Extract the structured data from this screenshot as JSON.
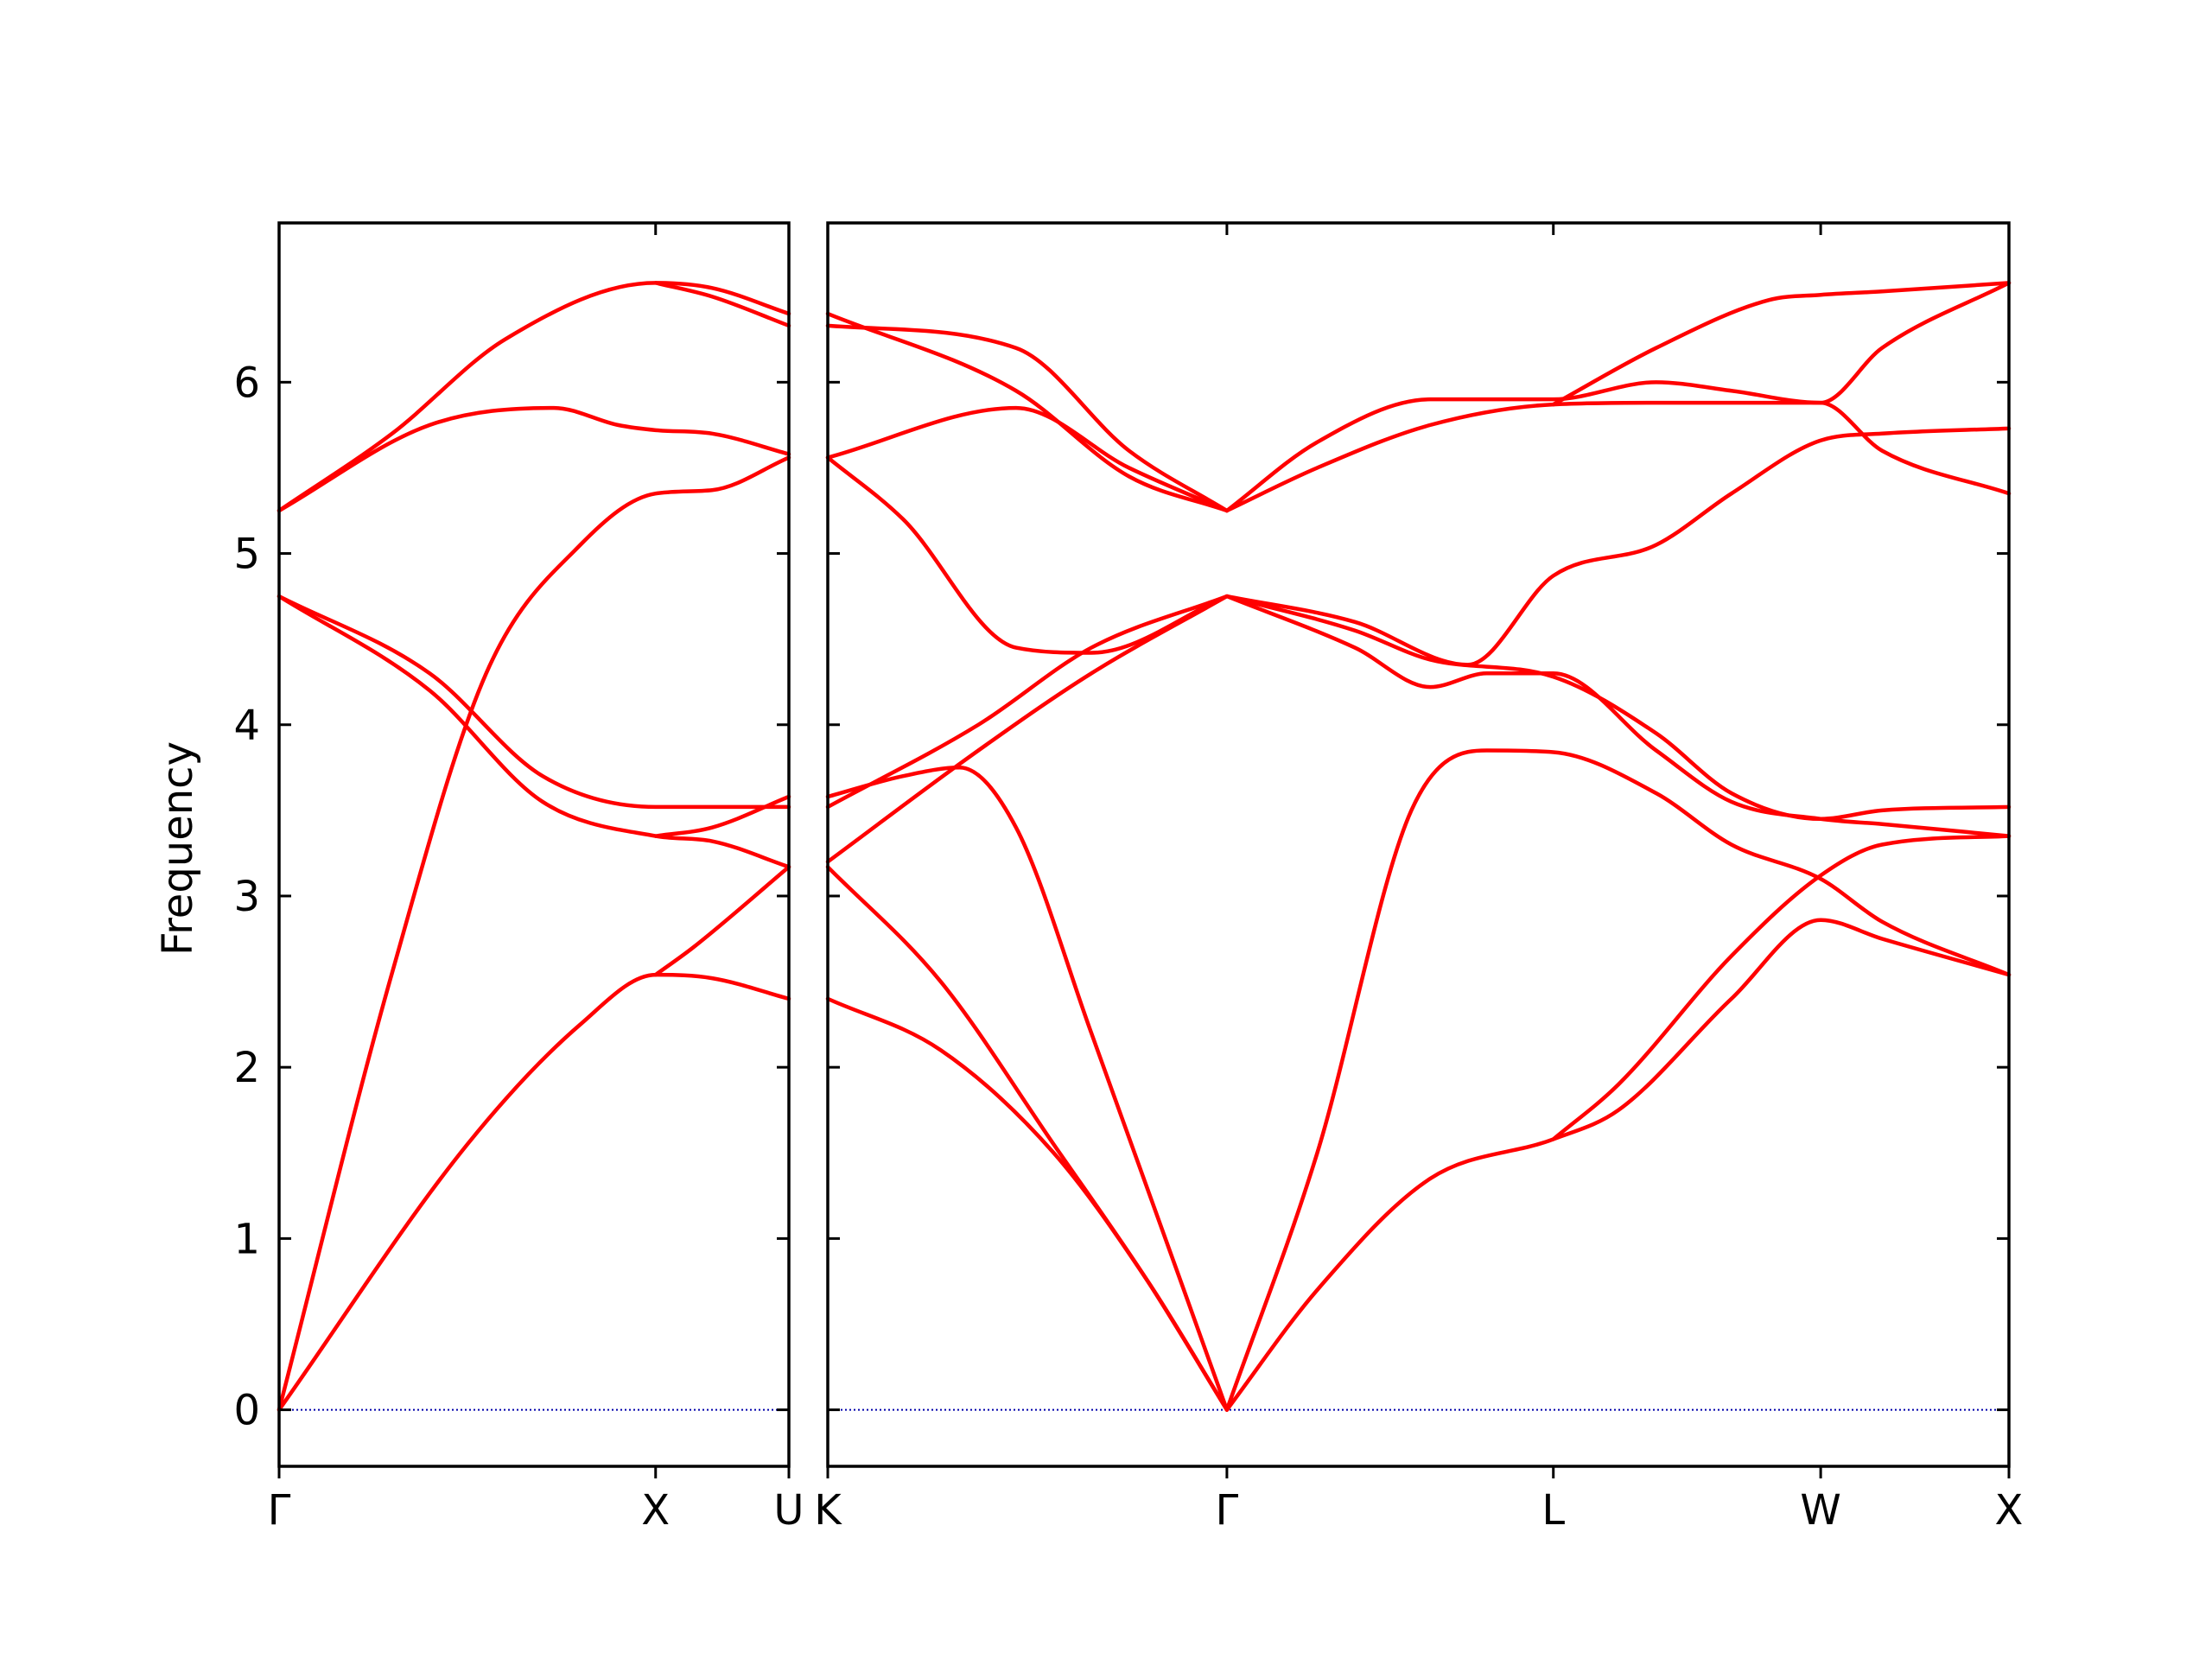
{
  "chart_data": {
    "type": "line",
    "title": "",
    "ylabel": "Frequency",
    "ylim": [
      -0.33,
      6.93
    ],
    "yticks": [
      0,
      1,
      2,
      3,
      4,
      5,
      6
    ],
    "line_color": "#ff0000",
    "zero_line_color": "#0000aa",
    "grid": false,
    "panels": [
      {
        "name": "left",
        "xticks": [
          {
            "label": "Γ",
            "x": 0
          },
          {
            "label": "X",
            "x": 1
          },
          {
            "label": "U",
            "x": 1.354
          }
        ],
        "xlim": [
          0,
          1.354
        ],
        "bands": [
          {
            "name": "band-1",
            "points": [
              [
                0,
                0
              ],
              [
                0.5,
                1.55
              ],
              [
                0.8,
                2.25
              ],
              [
                1.0,
                2.54
              ],
              [
                1.15,
                2.52
              ],
              [
                1.354,
                2.4
              ]
            ]
          },
          {
            "name": "band-2",
            "points": [
              [
                0,
                0
              ],
              [
                0.3,
                2.55
              ],
              [
                0.55,
                4.3
              ],
              [
                0.8,
                5.05
              ],
              [
                1.0,
                5.35
              ],
              [
                1.15,
                5.37
              ],
              [
                1.354,
                5.56
              ]
            ]
          },
          {
            "name": "band-3",
            "points": [
              [
                0,
                4.75
              ],
              [
                0.4,
                4.2
              ],
              [
                0.7,
                3.55
              ],
              [
                1.0,
                3.35
              ],
              [
                1.15,
                3.32
              ],
              [
                1.354,
                3.17
              ]
            ]
          },
          {
            "name": "band-4",
            "points": [
              [
                0,
                4.75
              ],
              [
                0.4,
                4.3
              ],
              [
                0.7,
                3.7
              ],
              [
                1.0,
                3.52
              ],
              [
                1.15,
                3.52
              ],
              [
                1.354,
                3.52
              ]
            ]
          },
          {
            "name": "band-5",
            "points": [
              [
                0,
                5.25
              ],
              [
                0.4,
                5.75
              ],
              [
                0.73,
                5.85
              ],
              [
                0.9,
                5.75
              ],
              [
                1.0,
                5.72
              ],
              [
                1.15,
                5.7
              ],
              [
                1.354,
                5.58
              ]
            ]
          },
          {
            "name": "band-6",
            "points": [
              [
                0,
                5.25
              ],
              [
                0.3,
                5.7
              ],
              [
                0.6,
                6.25
              ],
              [
                1.0,
                6.58
              ],
              [
                1.15,
                6.55
              ],
              [
                1.354,
                6.4
              ]
            ]
          },
          {
            "name": "band-7",
            "points": [
              [
                1.0,
                2.54
              ],
              [
                1.1,
                2.7
              ],
              [
                1.354,
                3.17
              ]
            ]
          },
          {
            "name": "band-8",
            "points": [
              [
                1.0,
                3.35
              ],
              [
                1.15,
                3.4
              ],
              [
                1.354,
                3.58
              ]
            ]
          },
          {
            "name": "band-9",
            "points": [
              [
                1.0,
                6.58
              ],
              [
                1.15,
                6.5
              ],
              [
                1.354,
                6.33
              ]
            ]
          }
        ]
      },
      {
        "name": "right",
        "xticks": [
          {
            "label": "K",
            "x": 0
          },
          {
            "label": "Γ",
            "x": 1.06
          },
          {
            "label": "L",
            "x": 1.927
          },
          {
            "label": "W",
            "x": 2.637
          },
          {
            "label": "X",
            "x": 3.137
          }
        ],
        "xlim": [
          0,
          3.137
        ],
        "bands": [
          {
            "name": "band-1",
            "points": [
              [
                0,
                2.4
              ],
              [
                0.3,
                2.1
              ],
              [
                0.6,
                1.5
              ],
              [
                0.85,
                0.75
              ],
              [
                1.06,
                0
              ]
            ]
          },
          {
            "name": "band-2",
            "points": [
              [
                0,
                3.17
              ],
              [
                0.3,
                2.5
              ],
              [
                0.6,
                1.55
              ],
              [
                0.85,
                0.75
              ],
              [
                1.06,
                0
              ]
            ]
          },
          {
            "name": "band-3",
            "points": [
              [
                0,
                3.58
              ],
              [
                0.2,
                3.7
              ],
              [
                0.35,
                3.75
              ],
              [
                0.5,
                3.4
              ],
              [
                0.7,
                2.2
              ],
              [
                1.06,
                0
              ]
            ]
          },
          {
            "name": "band-4",
            "points": [
              [
                0,
                3.52
              ],
              [
                0.4,
                4.0
              ],
              [
                0.7,
                4.45
              ],
              [
                1.06,
                4.75
              ]
            ]
          },
          {
            "name": "band-5",
            "points": [
              [
                0,
                3.2
              ],
              [
                0.4,
                3.85
              ],
              [
                0.7,
                4.3
              ],
              [
                1.06,
                4.75
              ]
            ]
          },
          {
            "name": "band-6",
            "points": [
              [
                0,
                5.56
              ],
              [
                0.2,
                5.2
              ],
              [
                0.5,
                4.45
              ],
              [
                0.7,
                4.42
              ],
              [
                1.06,
                4.75
              ]
            ]
          },
          {
            "name": "band-7",
            "points": [
              [
                0,
                5.56
              ],
              [
                0.5,
                5.85
              ],
              [
                0.8,
                5.5
              ],
              [
                1.06,
                5.25
              ]
            ]
          },
          {
            "name": "band-8",
            "points": [
              [
                0,
                6.33
              ],
              [
                0.5,
                6.2
              ],
              [
                0.8,
                5.6
              ],
              [
                1.06,
                5.25
              ]
            ]
          },
          {
            "name": "band-9",
            "points": [
              [
                0,
                6.4
              ],
              [
                0.5,
                5.95
              ],
              [
                0.8,
                5.45
              ],
              [
                1.06,
                5.25
              ]
            ]
          },
          {
            "name": "band-10",
            "points": [
              [
                1.06,
                0
              ],
              [
                1.3,
                0.7
              ],
              [
                1.6,
                1.35
              ],
              [
                1.927,
                1.58
              ],
              [
                2.1,
                1.75
              ],
              [
                2.4,
                2.4
              ],
              [
                2.637,
                2.86
              ],
              [
                2.8,
                2.75
              ],
              [
                3.137,
                2.54
              ]
            ]
          },
          {
            "name": "band-11",
            "points": [
              [
                1.06,
                0
              ],
              [
                1.3,
                1.5
              ],
              [
                1.55,
                3.5
              ],
              [
                1.75,
                3.85
              ],
              [
                1.927,
                3.84
              ],
              [
                2.2,
                3.6
              ],
              [
                2.4,
                3.3
              ],
              [
                2.637,
                3.1
              ],
              [
                2.8,
                2.85
              ],
              [
                3.137,
                2.54
              ]
            ]
          },
          {
            "name": "band-12",
            "points": [
              [
                1.927,
                1.58
              ],
              [
                2.1,
                1.9
              ],
              [
                2.4,
                2.65
              ],
              [
                2.637,
                3.12
              ],
              [
                2.8,
                3.3
              ],
              [
                3.137,
                3.35
              ]
            ]
          },
          {
            "name": "band-13",
            "points": [
              [
                1.06,
                4.75
              ],
              [
                1.4,
                4.45
              ],
              [
                1.6,
                4.22
              ],
              [
                1.75,
                4.3
              ],
              [
                1.927,
                4.3
              ],
              [
                2.2,
                3.85
              ],
              [
                2.4,
                3.55
              ],
              [
                2.637,
                3.45
              ],
              [
                2.8,
                3.42
              ],
              [
                3.137,
                3.35
              ]
            ]
          },
          {
            "name": "band-14",
            "points": [
              [
                1.06,
                4.75
              ],
              [
                1.4,
                4.55
              ],
              [
                1.6,
                4.38
              ],
              [
                1.927,
                4.28
              ],
              [
                2.2,
                3.95
              ],
              [
                2.4,
                3.6
              ],
              [
                2.637,
                3.45
              ],
              [
                2.8,
                3.5
              ],
              [
                3.137,
                3.52
              ]
            ]
          },
          {
            "name": "band-15",
            "points": [
              [
                1.06,
                4.75
              ],
              [
                1.4,
                4.6
              ],
              [
                1.7,
                4.35
              ],
              [
                1.927,
                4.87
              ],
              [
                2.2,
                5.05
              ],
              [
                2.4,
                5.35
              ],
              [
                2.637,
                5.66
              ],
              [
                2.8,
                5.7
              ],
              [
                3.137,
                5.73
              ]
            ]
          },
          {
            "name": "band-16",
            "points": [
              [
                1.06,
                5.25
              ],
              [
                1.3,
                5.5
              ],
              [
                1.6,
                5.75
              ],
              [
                1.927,
                5.87
              ],
              [
                2.2,
                5.88
              ],
              [
                2.637,
                5.88
              ],
              [
                2.8,
                5.6
              ],
              [
                3.137,
                5.35
              ]
            ]
          },
          {
            "name": "band-17",
            "points": [
              [
                1.06,
                5.25
              ],
              [
                1.3,
                5.65
              ],
              [
                1.6,
                5.9
              ],
              [
                1.927,
                5.9
              ],
              [
                2.2,
                6.0
              ],
              [
                2.4,
                5.95
              ],
              [
                2.637,
                5.88
              ],
              [
                2.8,
                6.2
              ],
              [
                3.137,
                6.58
              ]
            ]
          },
          {
            "name": "band-18",
            "points": [
              [
                1.927,
                5.87
              ],
              [
                2.2,
                6.2
              ],
              [
                2.5,
                6.48
              ],
              [
                2.637,
                6.51
              ],
              [
                2.8,
                6.53
              ],
              [
                3.137,
                6.58
              ]
            ]
          }
        ]
      }
    ]
  }
}
